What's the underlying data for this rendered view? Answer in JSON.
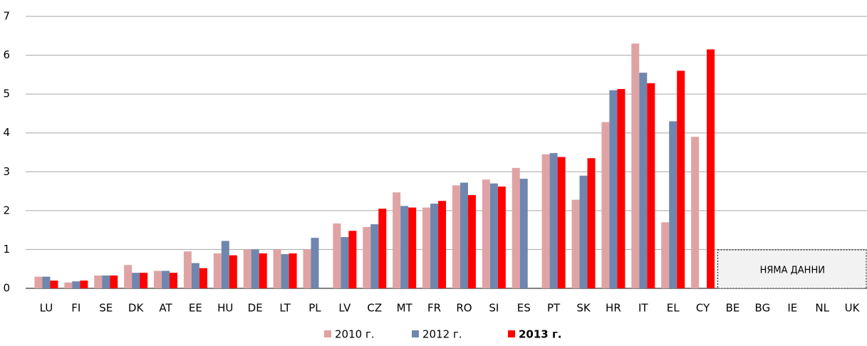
{
  "chart_data": {
    "type": "bar",
    "categories": [
      "LU",
      "FI",
      "SE",
      "DK",
      "AT",
      "EE",
      "HU",
      "DE",
      "LT",
      "PL",
      "LV",
      "CZ",
      "MT",
      "FR",
      "RO",
      "SI",
      "ES",
      "PT",
      "SK",
      "HR",
      "IT",
      "EL",
      "CY",
      "BE",
      "BG",
      "IE",
      "NL",
      "UK"
    ],
    "series": [
      {
        "name": "2010 г.",
        "color": "#e0a3a3",
        "values": [
          0.3,
          0.15,
          0.33,
          0.6,
          0.45,
          0.95,
          0.9,
          1.0,
          1.0,
          1.0,
          1.67,
          1.58,
          2.47,
          2.08,
          2.65,
          2.8,
          3.1,
          3.45,
          2.28,
          4.28,
          6.3,
          1.7,
          3.9,
          null,
          null,
          null,
          null,
          null
        ]
      },
      {
        "name": "2012 г.",
        "color": "#6f86ae",
        "values": [
          0.3,
          0.18,
          0.33,
          0.4,
          0.45,
          0.65,
          1.22,
          1.0,
          0.88,
          1.3,
          1.32,
          1.65,
          2.12,
          2.18,
          2.72,
          2.7,
          2.82,
          3.48,
          2.9,
          5.1,
          5.55,
          4.3,
          null,
          null,
          null,
          null,
          null,
          null
        ]
      },
      {
        "name": "2013 г.",
        "color": "#ff0000",
        "values": [
          0.2,
          0.2,
          0.33,
          0.4,
          0.4,
          0.52,
          0.85,
          0.9,
          0.9,
          null,
          1.48,
          2.05,
          2.08,
          2.25,
          2.4,
          2.62,
          null,
          3.38,
          3.35,
          5.13,
          5.28,
          5.6,
          6.15,
          null,
          null,
          null,
          null,
          null
        ]
      }
    ],
    "annotation": "НЯМА ДАННИ",
    "ylim": [
      0,
      7
    ],
    "yticks": [
      0,
      1,
      2,
      3,
      4,
      5,
      6,
      7
    ],
    "grid": true
  }
}
